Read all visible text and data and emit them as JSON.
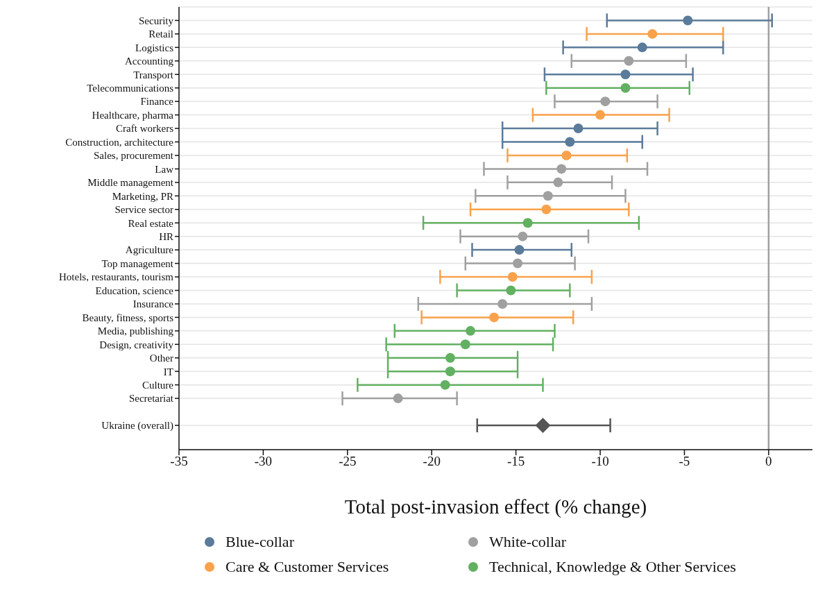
{
  "chart_data": {
    "type": "scatter",
    "orientation": "horizontal",
    "xlabel": "Total post-invasion effect (% change)",
    "categories": [
      "Security",
      "Retail",
      "Logistics",
      "Accounting",
      "Transport",
      "Telecommunications",
      "Finance",
      "Healthcare, pharma",
      "Craft workers",
      "Construction, architecture",
      "Sales, procurement",
      "Law",
      "Middle management",
      "Marketing, PR",
      "Service sector",
      "Real estate",
      "HR",
      "Agriculture",
      "Top management",
      "Hotels, restaurants, tourism",
      "Education, science",
      "Insurance",
      "Beauty, fitness, sports",
      "Media, publishing",
      "Design, creativity",
      "Other",
      "IT",
      "Culture",
      "Secretariat",
      null,
      "Ukraine (overall)"
    ],
    "series": [
      {
        "name": "Blue-collar",
        "color": "#5b7b9a",
        "marker": "circle",
        "values": [
          -4.8,
          null,
          -7.5,
          null,
          -8.5,
          null,
          null,
          null,
          -11.3,
          -11.8,
          null,
          null,
          null,
          null,
          null,
          null,
          null,
          -14.8,
          null,
          null,
          null,
          null,
          null,
          null,
          null,
          null,
          null,
          null,
          null,
          null,
          null
        ],
        "errors": [
          [
            -9.6,
            0.2
          ],
          null,
          [
            -12.2,
            -2.7
          ],
          null,
          [
            -13.3,
            -4.5
          ],
          null,
          null,
          null,
          [
            -15.8,
            -6.6
          ],
          [
            -15.8,
            -7.5
          ],
          null,
          null,
          null,
          null,
          null,
          null,
          null,
          [
            -17.6,
            -11.7
          ],
          null,
          null,
          null,
          null,
          null,
          null,
          null,
          null,
          null,
          null,
          null,
          null,
          null
        ]
      },
      {
        "name": "White-collar",
        "color": "#a0a0a0",
        "marker": "circle",
        "values": [
          null,
          null,
          null,
          -8.3,
          null,
          null,
          -9.7,
          null,
          null,
          null,
          null,
          -12.3,
          -12.5,
          -13.1,
          null,
          null,
          -14.6,
          null,
          -14.9,
          null,
          null,
          -15.8,
          null,
          null,
          null,
          null,
          null,
          null,
          -22.0,
          null,
          null
        ],
        "errors": [
          null,
          null,
          null,
          [
            -11.7,
            -4.9
          ],
          null,
          null,
          [
            -12.7,
            -6.6
          ],
          null,
          null,
          null,
          null,
          [
            -16.9,
            -7.2
          ],
          [
            -15.5,
            -9.3
          ],
          [
            -17.4,
            -8.5
          ],
          null,
          null,
          [
            -18.3,
            -10.7
          ],
          null,
          [
            -18.0,
            -11.5
          ],
          null,
          null,
          [
            -20.8,
            -10.5
          ],
          null,
          null,
          null,
          null,
          null,
          null,
          [
            -25.3,
            -18.5
          ],
          null,
          null
        ]
      },
      {
        "name": "Care & Customer Services",
        "color": "#f9a24b",
        "marker": "circle",
        "values": [
          null,
          -6.9,
          null,
          null,
          null,
          null,
          null,
          -10.0,
          null,
          null,
          -12.0,
          null,
          null,
          null,
          -13.2,
          null,
          null,
          null,
          null,
          -15.2,
          null,
          null,
          -16.3,
          null,
          null,
          null,
          null,
          null,
          null,
          null,
          null
        ],
        "errors": [
          null,
          [
            -10.8,
            -2.7
          ],
          null,
          null,
          null,
          null,
          null,
          [
            -14.0,
            -5.9
          ],
          null,
          null,
          [
            -15.5,
            -8.4
          ],
          null,
          null,
          null,
          [
            -17.7,
            -8.3
          ],
          null,
          null,
          null,
          null,
          [
            -19.5,
            -10.5
          ],
          null,
          null,
          [
            -20.6,
            -11.6
          ],
          null,
          null,
          null,
          null,
          null,
          null,
          null,
          null
        ]
      },
      {
        "name": "Technical, Knowledge & Other Services",
        "color": "#62b062",
        "marker": "circle",
        "values": [
          null,
          null,
          null,
          null,
          null,
          -8.5,
          null,
          null,
          null,
          null,
          null,
          null,
          null,
          null,
          null,
          -14.3,
          null,
          null,
          null,
          null,
          -15.3,
          null,
          null,
          -17.7,
          -18.0,
          -18.9,
          -18.9,
          -19.2,
          null,
          null,
          null
        ],
        "errors": [
          null,
          null,
          null,
          null,
          null,
          [
            -13.2,
            -4.7
          ],
          null,
          null,
          null,
          null,
          null,
          null,
          null,
          null,
          null,
          [
            -20.5,
            -7.7
          ],
          null,
          null,
          null,
          null,
          [
            -18.5,
            -11.8
          ],
          null,
          null,
          [
            -22.2,
            -12.7
          ],
          [
            -22.7,
            -12.8
          ],
          [
            -22.6,
            -14.9
          ],
          [
            -22.6,
            -14.9
          ],
          [
            -24.4,
            -13.4
          ],
          null,
          null,
          null
        ]
      },
      {
        "color": "#555555",
        "marker": "diamond",
        "values": [
          null,
          null,
          null,
          null,
          null,
          null,
          null,
          null,
          null,
          null,
          null,
          null,
          null,
          null,
          null,
          null,
          null,
          null,
          null,
          null,
          null,
          null,
          null,
          null,
          null,
          null,
          null,
          null,
          null,
          null,
          -13.4
        ],
        "errors": [
          null,
          null,
          null,
          null,
          null,
          null,
          null,
          null,
          null,
          null,
          null,
          null,
          null,
          null,
          null,
          null,
          null,
          null,
          null,
          null,
          null,
          null,
          null,
          null,
          null,
          null,
          null,
          null,
          null,
          null,
          [
            -17.3,
            -9.4
          ]
        ]
      }
    ],
    "xlim": [
      -35,
      2.6
    ],
    "xticks": [
      -35,
      -30,
      -25,
      -20,
      -15,
      -10,
      -5,
      0
    ],
    "ref_lines": [
      {
        "axis": "x",
        "value": 0,
        "color": "#a0a0a0"
      }
    ],
    "grid": "y",
    "legend": "bottom"
  }
}
